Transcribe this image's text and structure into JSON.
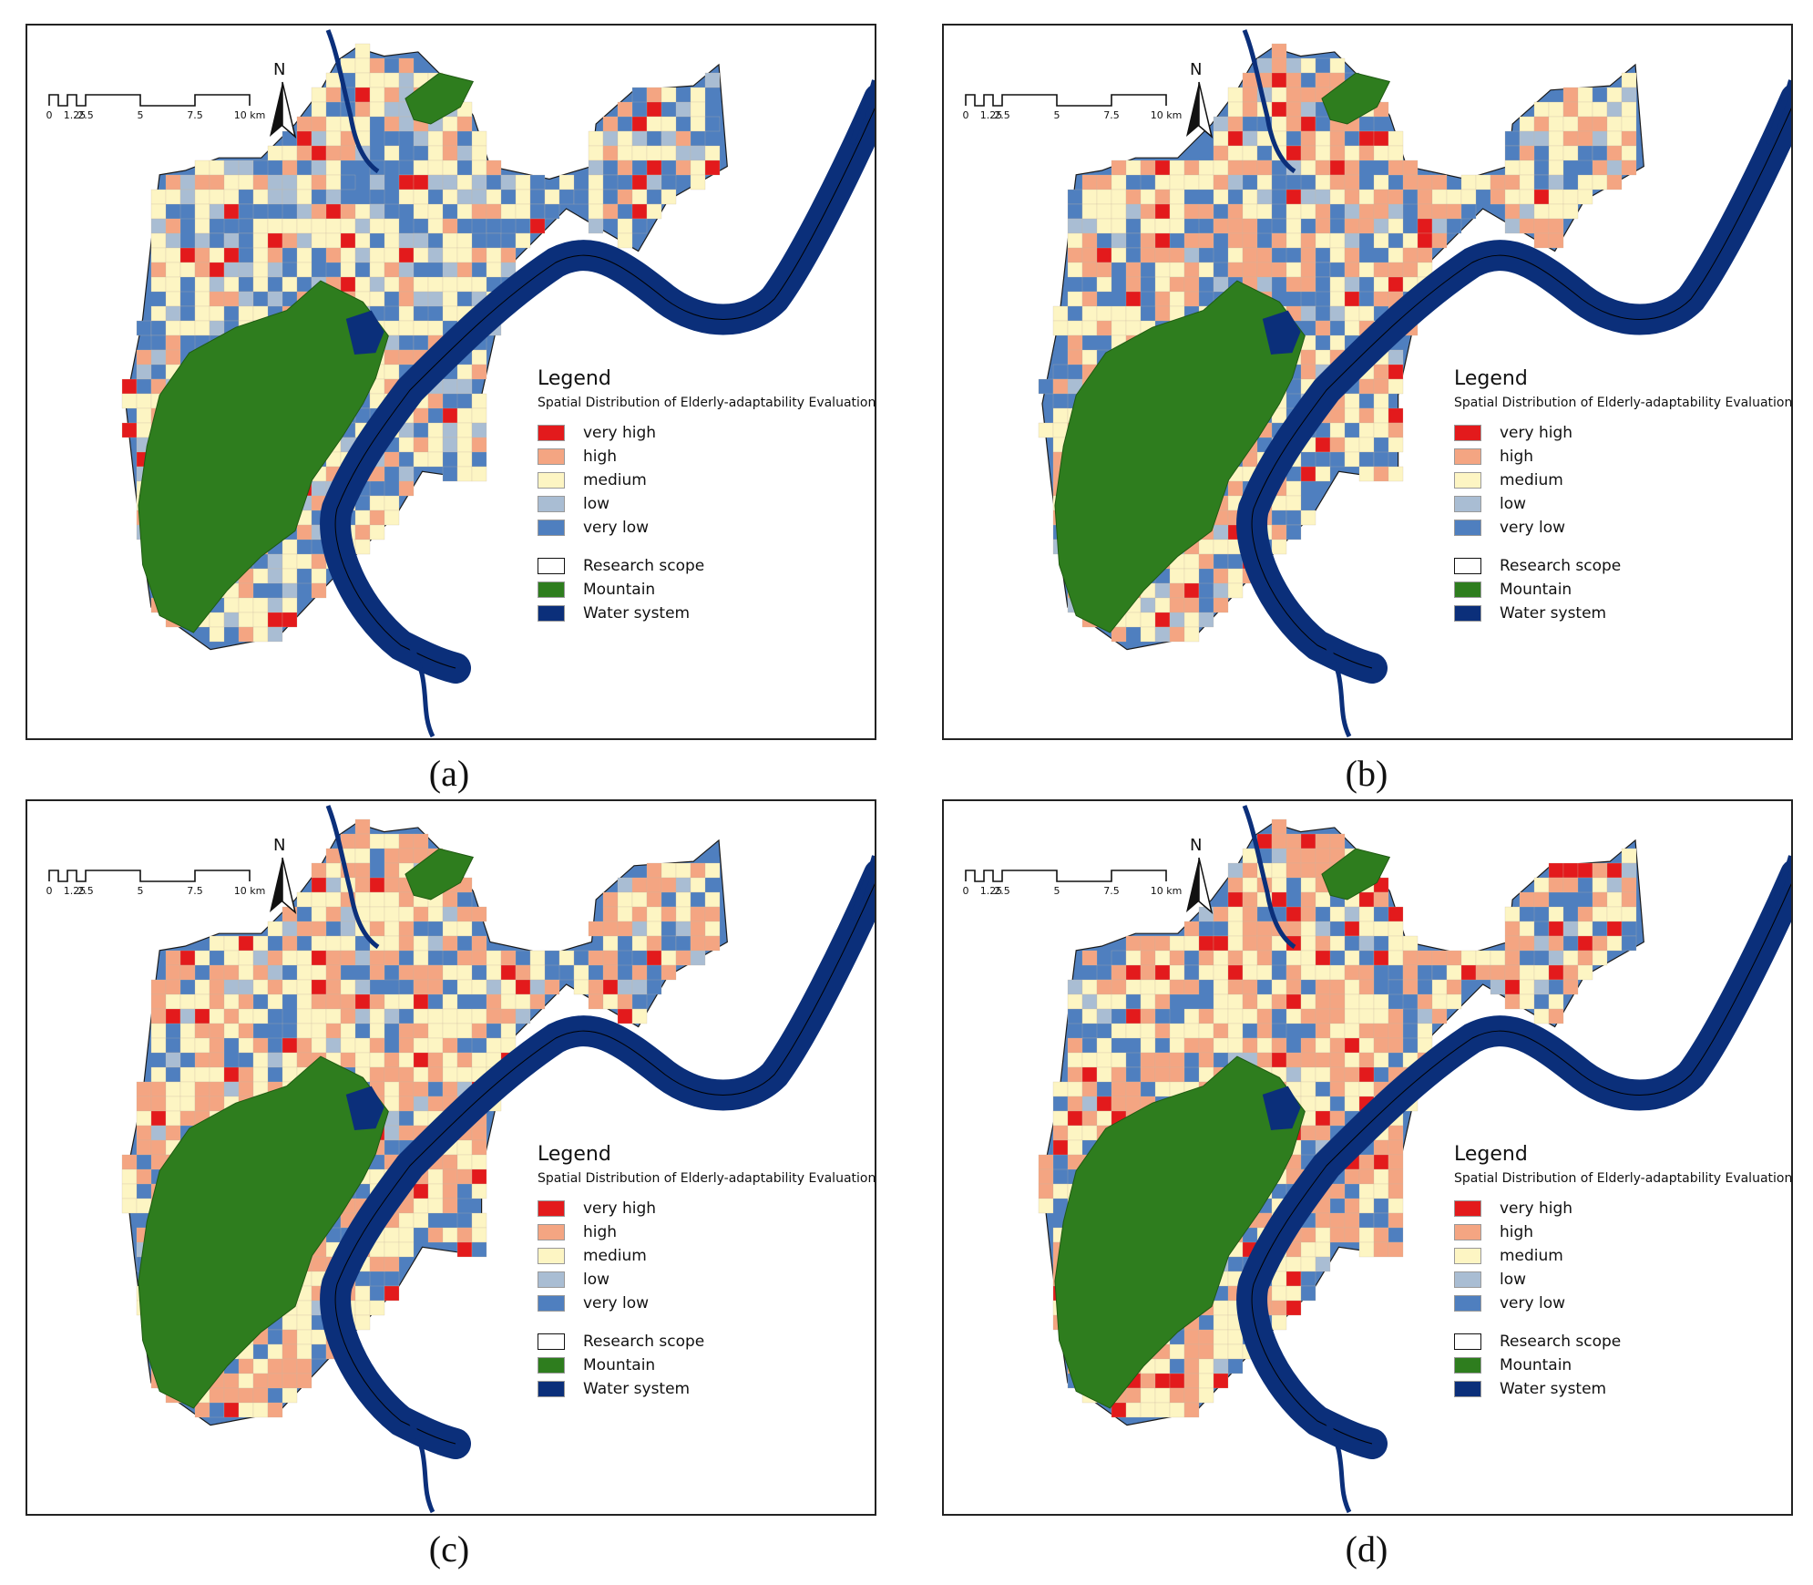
{
  "panels": [
    {
      "id": "a",
      "caption": "(a)"
    },
    {
      "id": "b",
      "caption": "(b)"
    },
    {
      "id": "c",
      "caption": "(c)"
    },
    {
      "id": "d",
      "caption": "(d)"
    }
  ],
  "legend": {
    "title": "Legend",
    "subtitle": "Spatial Distribution of Elderly-adaptability Evaluation",
    "classes": [
      {
        "label": "very high",
        "color": "#e31a1c"
      },
      {
        "label": "high",
        "color": "#f4a582"
      },
      {
        "label": "medium",
        "color": "#fdf5c3"
      },
      {
        "label": "low",
        "color": "#a9bdd3"
      },
      {
        "label": "very low",
        "color": "#4f7fbf"
      }
    ],
    "layers": [
      {
        "label": "Research scope",
        "color": "#ffffff"
      },
      {
        "label": "Mountain",
        "color": "#2e7d1e"
      },
      {
        "label": "Water system",
        "color": "#0b2f7a"
      }
    ]
  },
  "scale_bar": {
    "labels": [
      "0",
      "1.25",
      "2.5",
      "5",
      "7.5",
      "10 km"
    ]
  },
  "north_arrow": {
    "label": "N"
  }
}
